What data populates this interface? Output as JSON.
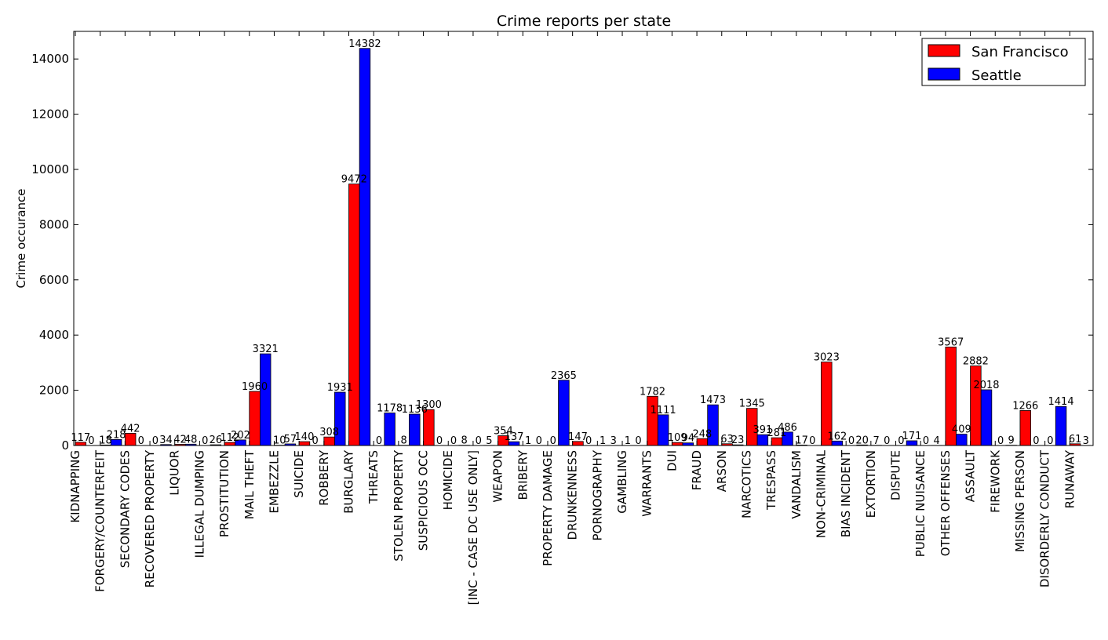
{
  "chart_data": {
    "type": "bar",
    "title": "Crime reports per state",
    "xlabel": "",
    "ylabel": "Crime occurance",
    "ylim": [
      0,
      15000
    ],
    "yticks": [
      0,
      2000,
      4000,
      6000,
      8000,
      10000,
      12000,
      14000
    ],
    "grid": false,
    "legend_position": "top-right",
    "categories": [
      "KIDNAPPING",
      "FORGERY/COUNTERFEIT",
      "SECONDARY CODES",
      "RECOVERED PROPERTY",
      "LIQUOR",
      "ILLEGAL DUMPING",
      "PROSTITUTION",
      "MAIL THEFT",
      "EMBEZZLE",
      "SUICIDE",
      "ROBBERY",
      "BURGLARY",
      "THREATS",
      "STOLEN PROPERTY",
      "SUSPICIOUS OCC",
      "HOMICIDE",
      "[INC - CASE DC USE ONLY]",
      "WEAPON",
      "BRIBERY",
      "PROPERTY DAMAGE",
      "DRUNKENNESS",
      "PORNOGRAPHY",
      "GAMBLING",
      "WARRANTS",
      "DUI",
      "FRAUD",
      "ARSON",
      "NARCOTICS",
      "TRESPASS",
      "VANDALISM",
      "NON-CRIMINAL",
      "BIAS INCIDENT",
      "EXTORTION",
      "DISPUTE",
      "PUBLIC NUISANCE",
      "OTHER OFFENSES",
      "ASSAULT",
      "FIREWORK",
      "MISSING PERSON",
      "DISORDERLY CONDUCT",
      "RUNAWAY"
    ],
    "series": [
      {
        "name": "San Francisco",
        "color": "#ff0000",
        "values": [
          117,
          18,
          442,
          0,
          42,
          0,
          112,
          1960,
          10,
          140,
          308,
          9472,
          0,
          8,
          1300,
          0,
          0,
          354,
          1,
          0,
          147,
          1,
          1,
          1782,
          109,
          248,
          63,
          1345,
          281,
          17,
          3023,
          0,
          7,
          0,
          0,
          3567,
          2882,
          0,
          1266,
          0,
          61
        ],
        "value_labels": [
          "117",
          "18",
          "442",
          "0",
          "42",
          "0",
          "112",
          "1960",
          "10",
          "140",
          "308",
          "9472",
          "0",
          "8",
          "1300",
          "0",
          "0",
          "354",
          "1",
          "0",
          "147",
          "1",
          "1",
          "1782",
          "109",
          "248",
          "63",
          "1345",
          "281",
          "17",
          "3023",
          "0",
          "7",
          "0",
          "0",
          "3567",
          "2882",
          "0",
          "1266",
          "0",
          "61"
        ]
      },
      {
        "name": "Seattle",
        "color": "#0000ff",
        "values": [
          0,
          218,
          0,
          34,
          48,
          26,
          202,
          3321,
          57,
          0,
          1931,
          14382,
          1178,
          1136,
          0,
          8,
          5,
          137,
          0,
          2365,
          0,
          3,
          0,
          1111,
          94,
          1473,
          23,
          391,
          486,
          0,
          162,
          20,
          0,
          171,
          4,
          409,
          2018,
          9,
          0,
          1414,
          3
        ],
        "value_labels": [
          "0",
          "218",
          "0",
          "34",
          "48",
          "26",
          "202",
          "3321",
          "57",
          "0",
          "1931",
          "14382",
          "1178",
          "1136",
          "0",
          "8",
          "5",
          "137",
          "0",
          "2365",
          "0",
          "3",
          "0",
          "1111",
          "94",
          "1473",
          "23",
          "391",
          "486",
          "0",
          "162",
          "20",
          "0",
          "171",
          "4",
          "409",
          "2018",
          "9",
          "0",
          "1414",
          "3"
        ]
      }
    ]
  }
}
